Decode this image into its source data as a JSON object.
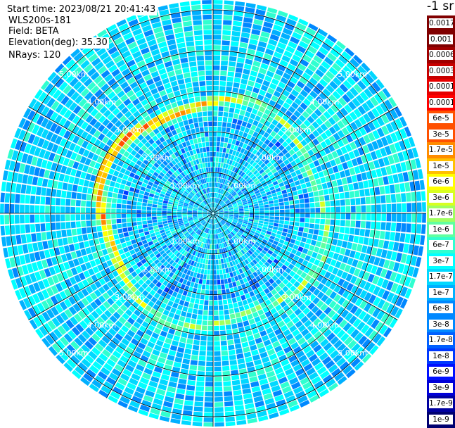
{
  "header": {
    "start_time": "Start time: 2023/08/21 20:41:43",
    "instrument": "WLS200s-181",
    "field": "Field: BETA",
    "elevation": "Elevation(deg): 35.30",
    "nrays": "NRays: 120"
  },
  "colorbar": {
    "units": "-1 sr",
    "colors": [
      "#fdf8f8",
      "#800000",
      "#a00000",
      "#c80000",
      "#e60000",
      "#ff0000",
      "#ff5000",
      "#ff8c00",
      "#ffc000",
      "#ffff00",
      "#d8ff20",
      "#a0ff60",
      "#60ffa0",
      "#30ffd0",
      "#00ffff",
      "#00d8ff",
      "#00b0ff",
      "#0088ff",
      "#0060ff",
      "#0038ff",
      "#0010ff",
      "#0000d8",
      "#0000a0",
      "#000070"
    ],
    "labels": [
      "0.0017",
      "0.001",
      "0.0006",
      "0.0003",
      "0.00017",
      "0.0001",
      "6e-5",
      "3e-5",
      "1.7e-5",
      "1e-5",
      "6e-6",
      "3e-6",
      "1.7e-6",
      "1e-6",
      "6e-7",
      "3e-7",
      "1.7e-7",
      "1e-7",
      "6e-8",
      "3e-8",
      "1.7e-8",
      "1e-8",
      "6e-9",
      "3e-9",
      "1.7e-9",
      "1e-9"
    ]
  },
  "chart_data": {
    "type": "heatmap",
    "projection": "polar-ppi",
    "field": "BETA",
    "units": "-1 sr",
    "n_rays": 120,
    "range_rings_km": [
      1,
      2,
      3,
      4,
      5
    ],
    "range_labels": [
      "1.00km",
      "2.00km",
      "3.00km",
      "4.00km",
      "5.00km"
    ],
    "color_scale": "log",
    "value_range": [
      1e-09,
      0.0017
    ],
    "background_beta": 3e-07,
    "cloud_layer": {
      "range_km": 2.7,
      "peak_beta": 0.0001,
      "azimuth_coverage": "partial ring, strongest north-west to west"
    }
  }
}
